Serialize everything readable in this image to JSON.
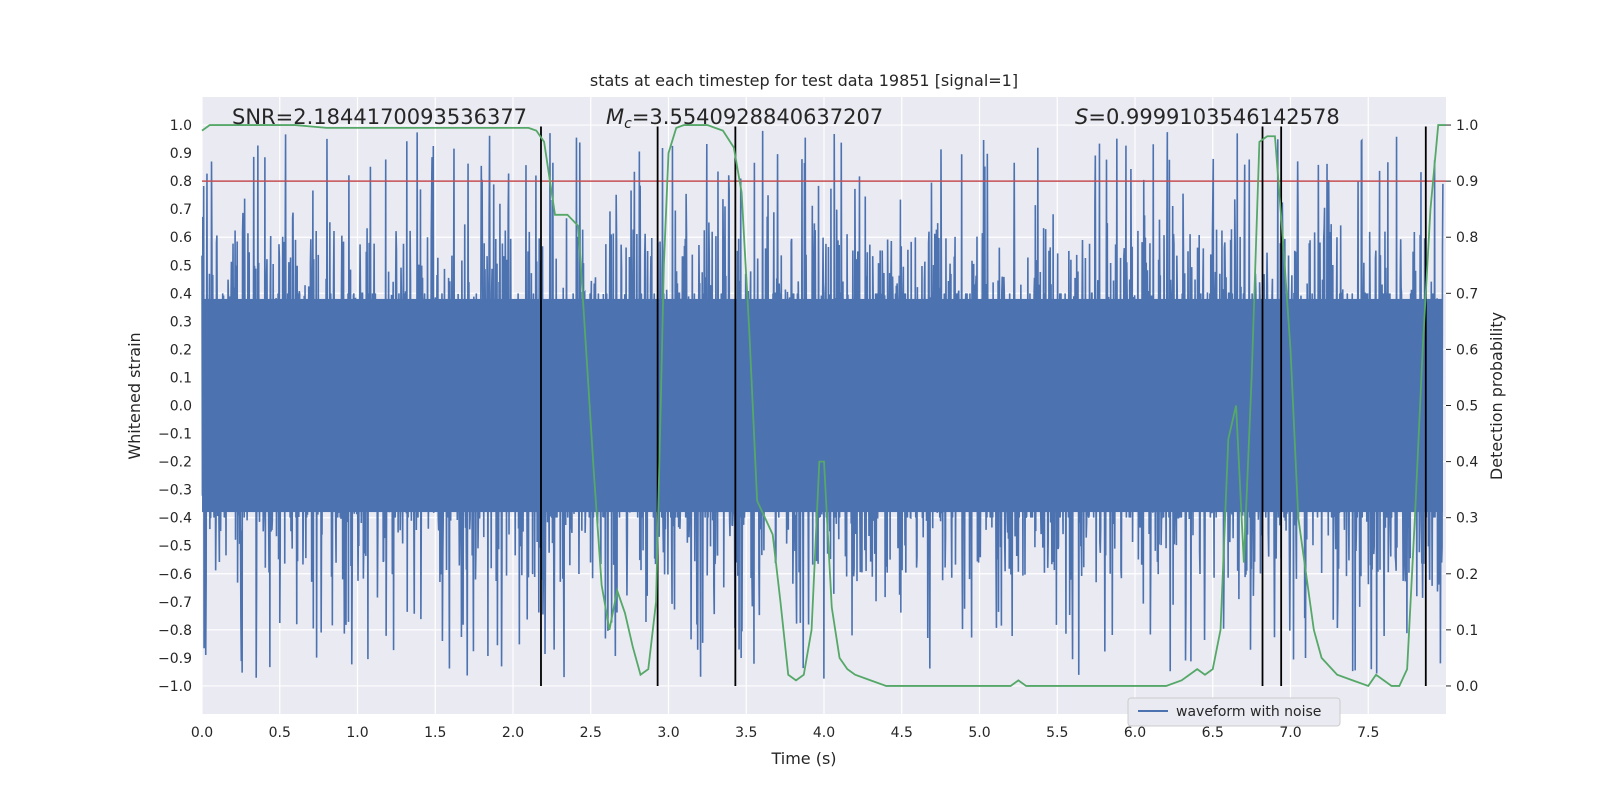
{
  "chart_data": {
    "type": "line",
    "title": "stats at each timestep for test data 19851 [signal=1]",
    "xlabel": "Time (s)",
    "ylabel": "Whitened strain",
    "y2label": "Detection probability",
    "xlim": [
      0.0,
      8.0
    ],
    "ylim": [
      -1.1,
      1.1
    ],
    "y2lim": [
      -0.05,
      1.05
    ],
    "xticks": [
      "0.0",
      "0.5",
      "1.0",
      "1.5",
      "2.0",
      "2.5",
      "3.0",
      "3.5",
      "4.0",
      "4.5",
      "5.0",
      "5.5",
      "6.0",
      "6.5",
      "7.0",
      "7.5"
    ],
    "yticks": [
      "1.0",
      "0.9",
      "0.8",
      "0.7",
      "0.6",
      "0.5",
      "0.4",
      "0.3",
      "0.2",
      "0.1",
      "0.0",
      "-0.1",
      "-0.2",
      "-0.3",
      "-0.4",
      "-0.5",
      "-0.6",
      "-0.7",
      "-0.8",
      "-0.9",
      "-1.0"
    ],
    "y2ticks": [
      "1.0",
      "0.9",
      "0.8",
      "0.7",
      "0.6",
      "0.5",
      "0.4",
      "0.3",
      "0.2",
      "0.1",
      "0.0"
    ],
    "annotations": {
      "snr": "SNR=2.1844170093536377",
      "mc_prefix": "M",
      "mc_sub": "c",
      "mc_value": "=3.5540928840637207",
      "s_prefix": "S",
      "s_value": "=0.9999103546142578"
    },
    "threshold": {
      "value": 0.9,
      "axis": "right",
      "color": "#c44e52"
    },
    "vertical_lines": [
      2.18,
      2.93,
      3.43,
      6.82,
      6.94,
      7.87
    ],
    "legend": {
      "label": "waveform with noise",
      "location": "lower-right"
    },
    "colors": {
      "waveform": "#4c72b0",
      "probability": "#55a868",
      "vlines": "#000000",
      "background": "#eaeaf2"
    },
    "waveform_envelope": {
      "description_free_params": true,
      "noise_seed": 19851,
      "core_amplitude": 0.38,
      "peak_max": 0.98,
      "sample_count": 3000
    },
    "series": [
      {
        "name": "detection probability",
        "axis": "right",
        "x": [
          0.0,
          0.05,
          0.1,
          0.2,
          0.4,
          0.6,
          0.8,
          1.0,
          1.2,
          1.4,
          1.6,
          1.8,
          2.0,
          2.1,
          2.15,
          2.2,
          2.27,
          2.35,
          2.42,
          2.47,
          2.52,
          2.57,
          2.62,
          2.67,
          2.72,
          2.77,
          2.82,
          2.87,
          2.92,
          2.95,
          2.97,
          3.0,
          3.05,
          3.1,
          3.15,
          3.2,
          3.25,
          3.3,
          3.35,
          3.42,
          3.47,
          3.52,
          3.57,
          3.62,
          3.67,
          3.72,
          3.77,
          3.82,
          3.87,
          3.92,
          3.97,
          4.0,
          4.05,
          4.1,
          4.15,
          4.2,
          4.3,
          4.4,
          4.5,
          4.6,
          4.7,
          4.8,
          5.0,
          5.2,
          5.25,
          5.3,
          5.4,
          5.5,
          5.6,
          5.8,
          5.9,
          6.0,
          6.1,
          6.2,
          6.3,
          6.35,
          6.4,
          6.45,
          6.5,
          6.55,
          6.6,
          6.65,
          6.7,
          6.75,
          6.8,
          6.85,
          6.9,
          6.95,
          7.0,
          7.05,
          7.1,
          7.15,
          7.2,
          7.3,
          7.4,
          7.5,
          7.55,
          7.6,
          7.65,
          7.7,
          7.75,
          7.8,
          7.85,
          7.9,
          7.95,
          8.0
        ],
        "values": [
          0.99,
          1.0,
          1.0,
          1.0,
          1.0,
          1.0,
          0.995,
          0.995,
          0.995,
          0.995,
          0.995,
          0.995,
          0.995,
          0.995,
          0.99,
          0.97,
          0.84,
          0.84,
          0.82,
          0.6,
          0.38,
          0.18,
          0.1,
          0.17,
          0.13,
          0.07,
          0.02,
          0.03,
          0.15,
          0.5,
          0.75,
          0.95,
          0.995,
          1.0,
          1.0,
          1.0,
          1.0,
          0.995,
          0.99,
          0.96,
          0.88,
          0.63,
          0.33,
          0.3,
          0.27,
          0.15,
          0.02,
          0.01,
          0.02,
          0.1,
          0.4,
          0.4,
          0.14,
          0.05,
          0.03,
          0.02,
          0.01,
          0.0,
          0.0,
          0.0,
          0.0,
          0.0,
          0.0,
          0.0,
          0.01,
          0.0,
          0.0,
          0.0,
          0.0,
          0.0,
          0.0,
          0.0,
          0.0,
          0.0,
          0.01,
          0.02,
          0.03,
          0.02,
          0.03,
          0.1,
          0.44,
          0.5,
          0.22,
          0.55,
          0.97,
          0.98,
          0.98,
          0.8,
          0.6,
          0.3,
          0.2,
          0.1,
          0.05,
          0.02,
          0.01,
          0.0,
          0.02,
          0.01,
          0.0,
          0.0,
          0.03,
          0.3,
          0.6,
          0.85,
          1.0,
          1.0
        ]
      }
    ]
  }
}
